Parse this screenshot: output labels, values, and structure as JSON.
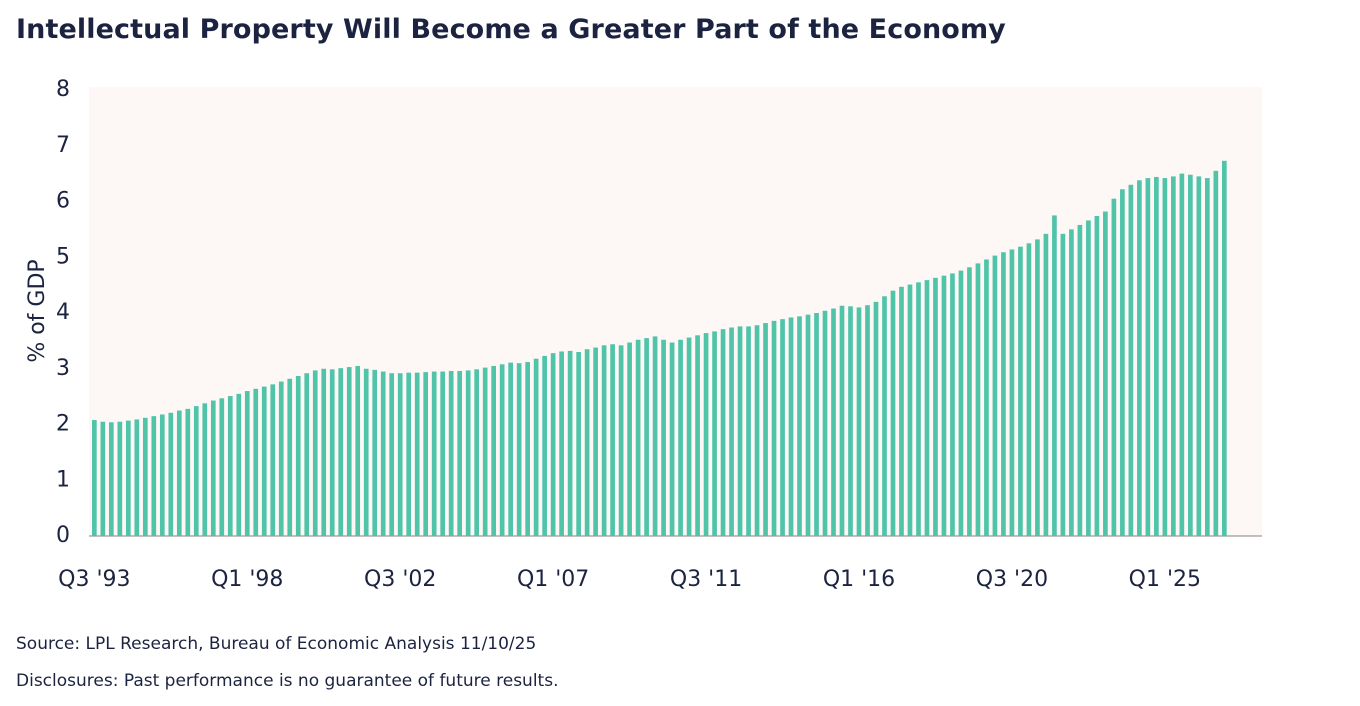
{
  "chart_data": {
    "type": "bar",
    "title": "Intellectual Property Will Become a Greater Part of the Economy",
    "ylabel": "% of GDP",
    "xlabel": "",
    "ylim": [
      0,
      8
    ],
    "yticks": [
      0,
      1,
      2,
      3,
      4,
      5,
      6,
      7,
      8
    ],
    "x_tick_labels": [
      "Q3 '93",
      "Q1 '98",
      "Q3 '02",
      "Q1 '07",
      "Q3 '11",
      "Q1 '16",
      "Q3 '20",
      "Q1 '25"
    ],
    "grid": false,
    "colors": {
      "bar": "#4fc4a9",
      "plot_bg": "#fdf7f5",
      "axis": "#9a9a9a",
      "text": "#1c2340"
    },
    "start_period": "Q3 '93",
    "end_period": "Q1 '25",
    "values": [
      2.08,
      2.05,
      2.04,
      2.05,
      2.07,
      2.09,
      2.12,
      2.15,
      2.18,
      2.21,
      2.25,
      2.28,
      2.33,
      2.38,
      2.43,
      2.47,
      2.51,
      2.55,
      2.6,
      2.64,
      2.68,
      2.72,
      2.77,
      2.82,
      2.87,
      2.92,
      2.97,
      3.0,
      2.99,
      3.01,
      3.03,
      3.05,
      3.0,
      2.98,
      2.95,
      2.92,
      2.92,
      2.93,
      2.93,
      2.94,
      2.95,
      2.95,
      2.96,
      2.96,
      2.97,
      2.99,
      3.02,
      3.05,
      3.08,
      3.11,
      3.1,
      3.12,
      3.18,
      3.23,
      3.28,
      3.31,
      3.32,
      3.3,
      3.35,
      3.38,
      3.42,
      3.44,
      3.42,
      3.47,
      3.52,
      3.55,
      3.58,
      3.52,
      3.47,
      3.52,
      3.56,
      3.6,
      3.64,
      3.67,
      3.71,
      3.74,
      3.76,
      3.76,
      3.78,
      3.82,
      3.86,
      3.89,
      3.92,
      3.94,
      3.97,
      4.0,
      4.04,
      4.08,
      4.13,
      4.12,
      4.1,
      4.14,
      4.2,
      4.3,
      4.4,
      4.47,
      4.51,
      4.55,
      4.59,
      4.63,
      4.67,
      4.71,
      4.76,
      4.82,
      4.89,
      4.96,
      5.03,
      5.09,
      5.14,
      5.19,
      5.25,
      5.32,
      5.42,
      5.75,
      5.42,
      5.5,
      5.58,
      5.66,
      5.74,
      5.82,
      6.05,
      6.22,
      6.3,
      6.38,
      6.42,
      6.44,
      6.42,
      6.45,
      6.5,
      6.48,
      6.45,
      6.42,
      6.55,
      6.73
    ]
  },
  "source_note": "Source: LPL Research, Bureau of Economic Analysis 11/10/25",
  "disclosure_note": "Disclosures: Past performance is no guarantee of future results."
}
